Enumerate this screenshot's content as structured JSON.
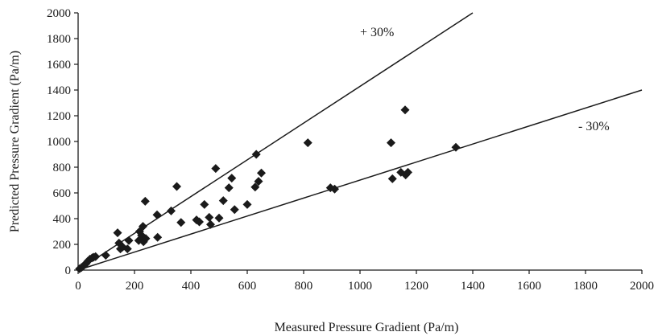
{
  "chart_data": {
    "type": "scatter",
    "title": "",
    "xlabel": "Measured Pressure Gradient (Pa/m)",
    "ylabel": "Predicted Pressure Gradient (Pa/m)",
    "xlim": [
      0,
      2000
    ],
    "ylim": [
      0,
      2000
    ],
    "xticks": [
      "0",
      "200",
      "400",
      "600",
      "800",
      "1000",
      "1200",
      "1400",
      "1600",
      "1800",
      "2000"
    ],
    "yticks": [
      "0",
      "200",
      "400",
      "600",
      "800",
      "1000",
      "1200",
      "1400",
      "1600",
      "1800",
      "2000"
    ],
    "grid": false,
    "marker": "diamond",
    "colors": {
      "marker": "#1a1a1a",
      "lines": "#1a1a1a",
      "axes": "#1a1a1a"
    },
    "reference_lines": [
      {
        "label": "+ 30%",
        "slope": 1.4286
      },
      {
        "label": "- 30%",
        "slope": 0.7
      }
    ],
    "points": [
      [
        5,
        10
      ],
      [
        12,
        20
      ],
      [
        20,
        35
      ],
      [
        28,
        50
      ],
      [
        35,
        70
      ],
      [
        42,
        85
      ],
      [
        50,
        95
      ],
      [
        55,
        100
      ],
      [
        62,
        105
      ],
      [
        98,
        115
      ],
      [
        140,
        290
      ],
      [
        145,
        210
      ],
      [
        150,
        165
      ],
      [
        158,
        180
      ],
      [
        175,
        165
      ],
      [
        180,
        230
      ],
      [
        215,
        230
      ],
      [
        218,
        300
      ],
      [
        225,
        270
      ],
      [
        230,
        340
      ],
      [
        232,
        220
      ],
      [
        238,
        535
      ],
      [
        240,
        245
      ],
      [
        280,
        430
      ],
      [
        282,
        255
      ],
      [
        330,
        460
      ],
      [
        350,
        650
      ],
      [
        365,
        370
      ],
      [
        420,
        390
      ],
      [
        430,
        375
      ],
      [
        448,
        510
      ],
      [
        465,
        410
      ],
      [
        470,
        355
      ],
      [
        488,
        790
      ],
      [
        500,
        405
      ],
      [
        515,
        540
      ],
      [
        535,
        640
      ],
      [
        545,
        715
      ],
      [
        555,
        470
      ],
      [
        600,
        510
      ],
      [
        628,
        645
      ],
      [
        632,
        900
      ],
      [
        640,
        690
      ],
      [
        650,
        755
      ],
      [
        815,
        990
      ],
      [
        895,
        640
      ],
      [
        910,
        630
      ],
      [
        1110,
        990
      ],
      [
        1115,
        710
      ],
      [
        1145,
        760
      ],
      [
        1160,
        1245
      ],
      [
        1162,
        740
      ],
      [
        1170,
        760
      ],
      [
        1340,
        955
      ]
    ]
  }
}
